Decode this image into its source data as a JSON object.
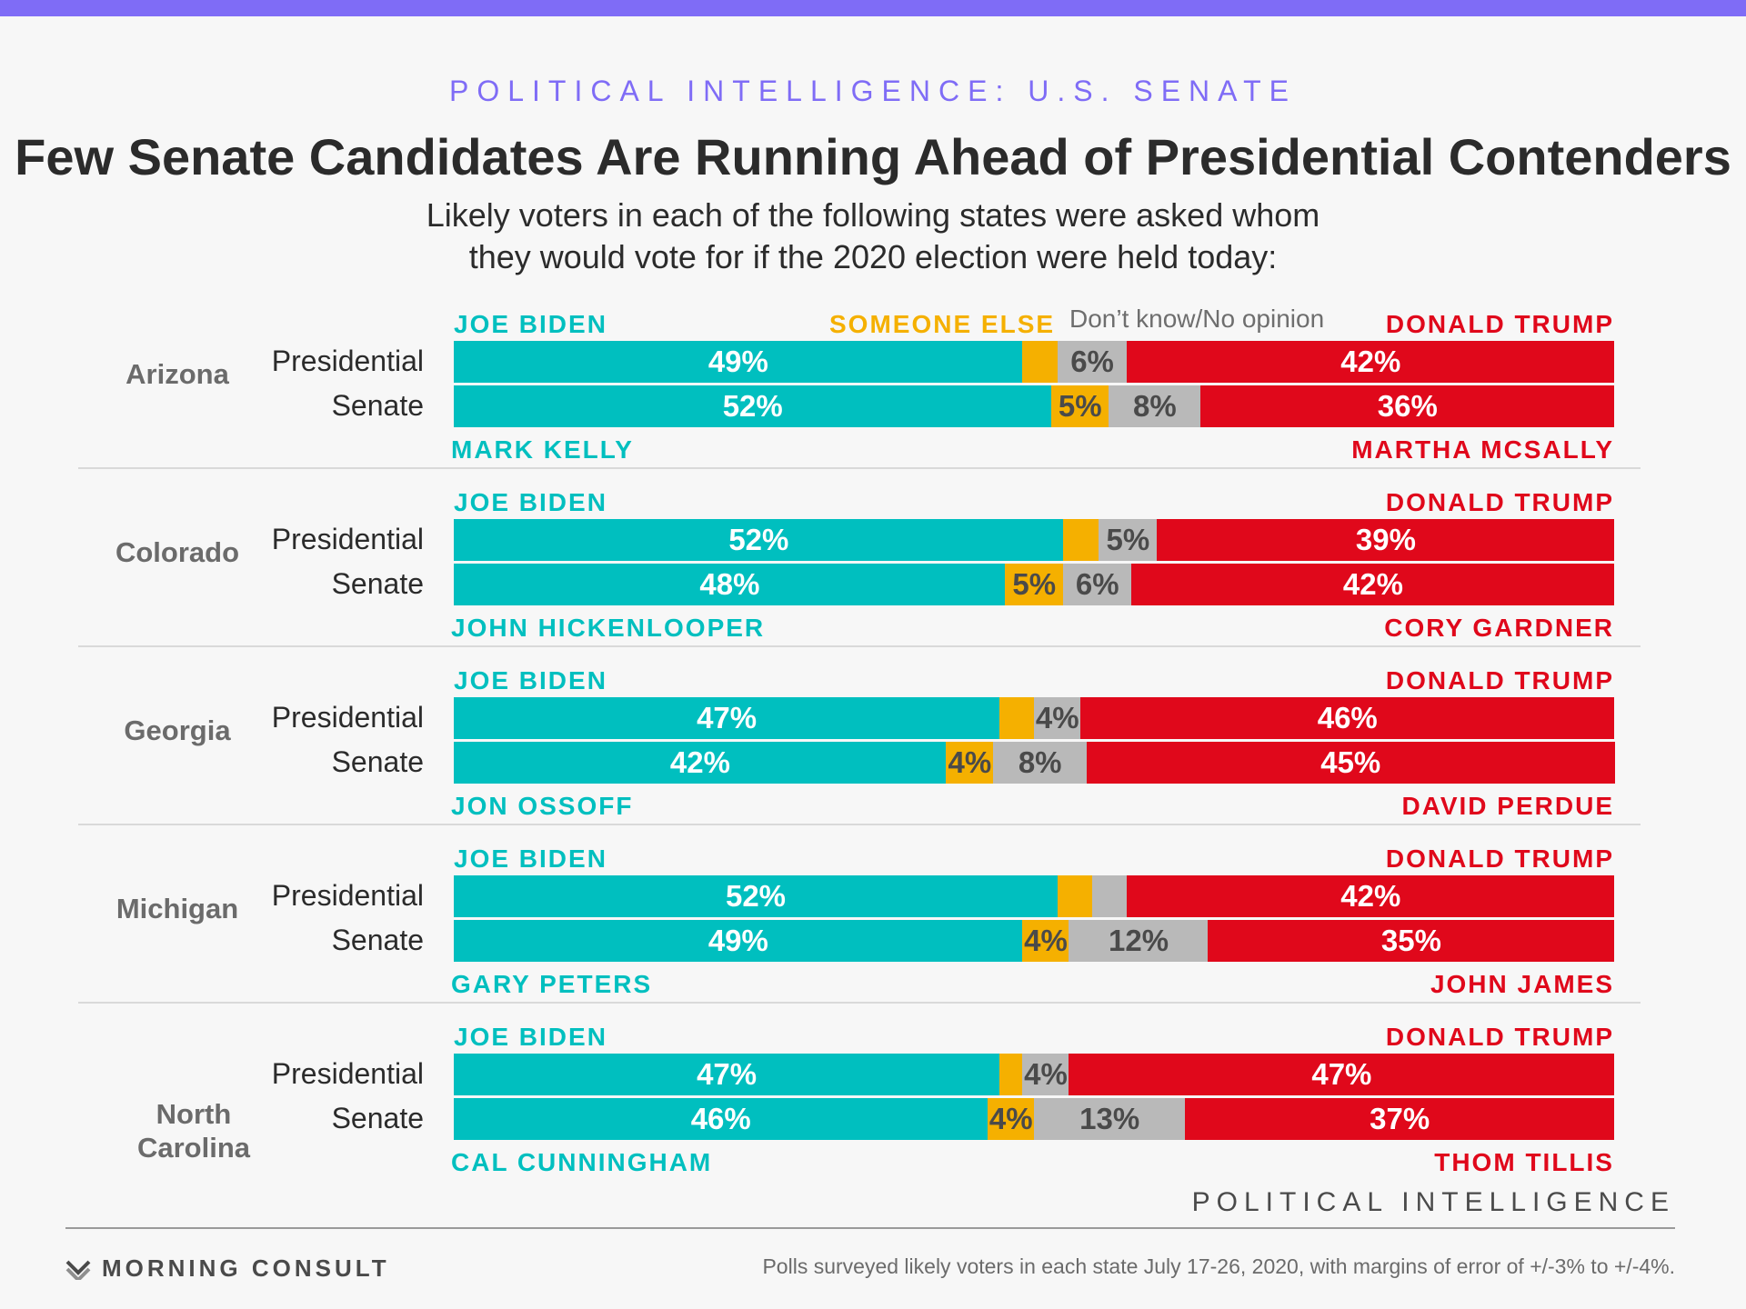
{
  "header": {
    "kicker": "POLITICAL INTELLIGENCE: U.S. SENATE",
    "title": "Few Senate Candidates Are Running Ahead of Presidential Contenders",
    "subtitle_line1": "Likely voters in each of the following states were asked whom",
    "subtitle_line2": "they would vote for if the 2020 election were held today:"
  },
  "legend": {
    "someone_else": "SOMEONE ELSE",
    "dont_know": "Don’t know/No opinion"
  },
  "colors": {
    "dem": "#00bfbf",
    "someone_else": "#f5b000",
    "dont_know": "#b9b9b9",
    "rep": "#e0081b",
    "accent": "#7f6cf6"
  },
  "chart_data": {
    "type": "bar",
    "stacked": true,
    "orientation": "horizontal",
    "segments": [
      "Democrat",
      "Someone else",
      "Don't know/No opinion",
      "Republican"
    ],
    "states": [
      {
        "state": "Arizona",
        "rows": [
          {
            "race": "Presidential",
            "dem_name": "JOE BIDEN",
            "rep_name": "DONALD TRUMP",
            "values": [
              49,
              3,
              6,
              42
            ],
            "labels": [
              "49%",
              "",
              "6%",
              "42%"
            ]
          },
          {
            "race": "Senate",
            "dem_name": "MARK KELLY",
            "rep_name": "MARTHA MCSALLY",
            "values": [
              52,
              5,
              8,
              36
            ],
            "labels": [
              "52%",
              "5%",
              "8%",
              "36%"
            ]
          }
        ]
      },
      {
        "state": "Colorado",
        "rows": [
          {
            "race": "Presidential",
            "dem_name": "JOE BIDEN",
            "rep_name": "DONALD TRUMP",
            "values": [
              52,
              3,
              5,
              39
            ],
            "labels": [
              "52%",
              "",
              "5%",
              "39%"
            ]
          },
          {
            "race": "Senate",
            "dem_name": "JOHN HICKENLOOPER",
            "rep_name": "CORY GARDNER",
            "values": [
              48,
              5,
              6,
              42
            ],
            "labels": [
              "48%",
              "5%",
              "6%",
              "42%"
            ]
          }
        ]
      },
      {
        "state": "Georgia",
        "rows": [
          {
            "race": "Presidential",
            "dem_name": "JOE BIDEN",
            "rep_name": "DONALD TRUMP",
            "values": [
              47,
              3,
              4,
              46
            ],
            "labels": [
              "47%",
              "",
              "4%",
              "46%"
            ]
          },
          {
            "race": "Senate",
            "dem_name": "JON OSSOFF",
            "rep_name": "DAVID PERDUE",
            "values": [
              42,
              4,
              8,
              45
            ],
            "labels": [
              "42%",
              "4%",
              "8%",
              "45%"
            ]
          }
        ]
      },
      {
        "state": "Michigan",
        "rows": [
          {
            "race": "Presidential",
            "dem_name": "JOE BIDEN",
            "rep_name": "DONALD TRUMP",
            "values": [
              52,
              3,
              3,
              42
            ],
            "labels": [
              "52%",
              "",
              "",
              "42%"
            ]
          },
          {
            "race": "Senate",
            "dem_name": "GARY PETERS",
            "rep_name": "JOHN JAMES",
            "values": [
              49,
              4,
              12,
              35
            ],
            "labels": [
              "49%",
              "4%",
              "12%",
              "35%"
            ]
          }
        ]
      },
      {
        "state": "North Carolina",
        "rows": [
          {
            "race": "Presidential",
            "dem_name": "JOE BIDEN",
            "rep_name": "DONALD TRUMP",
            "values": [
              47,
              2,
              4,
              47
            ],
            "labels": [
              "47%",
              "",
              "4%",
              "47%"
            ]
          },
          {
            "race": "Senate",
            "dem_name": "CAL CUNNINGHAM",
            "rep_name": "THOM TILLIS",
            "values": [
              46,
              4,
              13,
              37
            ],
            "labels": [
              "46%",
              "4%",
              "13%",
              "37%"
            ]
          }
        ]
      }
    ]
  },
  "footer": {
    "brand_right": "POLITICAL INTELLIGENCE",
    "logo_text": "MORNING CONSULT",
    "source": "Polls surveyed likely voters in each state July 17-26, 2020, with margins of error of +/-3% to +/-4%."
  }
}
